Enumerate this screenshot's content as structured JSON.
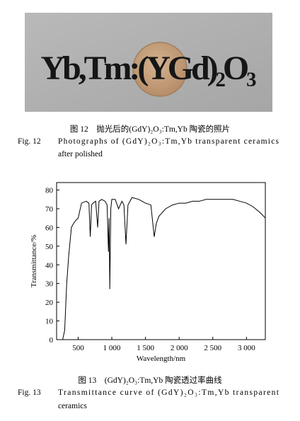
{
  "photo": {
    "label": "Yb,Tm:(YGd)₂O₃"
  },
  "figure12": {
    "caption_cn": "图 12　抛光后的(GdY)₂O₃:Tm,Yb 陶瓷的照片",
    "label_en": "Fig. 12",
    "caption_en_line1": "Photographs of (GdY)₂O₃:Tm,Yb transparent ceramics",
    "caption_en_line2": "after polished"
  },
  "chart_data": {
    "type": "line",
    "xlabel": "Wavelength/nm",
    "ylabel": "Transmittance/%",
    "color": "#000000",
    "x": [
      270,
      300,
      330,
      360,
      400,
      430,
      470,
      500,
      550,
      620,
      660,
      680,
      700,
      720,
      760,
      790,
      810,
      850,
      900,
      930,
      950,
      960,
      970,
      985,
      1000,
      1050,
      1100,
      1150,
      1180,
      1210,
      1240,
      1300,
      1400,
      1500,
      1580,
      1630,
      1660,
      1700,
      1750,
      1800,
      1900,
      2000,
      2100,
      2200,
      2300,
      2400,
      2500,
      2600,
      2700,
      2800,
      2900,
      3000,
      3100,
      3200,
      3280
    ],
    "values": [
      0,
      5,
      30,
      45,
      60,
      62,
      64,
      65,
      73,
      74,
      73,
      55,
      72,
      73,
      74,
      60,
      74,
      75,
      74,
      72,
      47,
      65,
      27,
      70,
      75,
      75,
      70,
      74,
      72,
      51,
      72,
      76,
      75,
      73,
      72,
      55,
      62,
      66,
      68,
      70,
      72,
      73,
      73,
      74,
      74,
      75,
      75,
      75,
      75,
      75,
      74,
      73,
      71,
      68,
      65
    ],
    "xlim": [
      180,
      3280
    ],
    "ylim": [
      0,
      84
    ],
    "xticks": [
      {
        "value": 500,
        "label": "500"
      },
      {
        "value": 1000,
        "label": "1 000"
      },
      {
        "value": 1500,
        "label": "1 500"
      },
      {
        "value": 2000,
        "label": "2 000"
      },
      {
        "value": 2500,
        "label": "2 500"
      },
      {
        "value": 3000,
        "label": "3 000"
      }
    ],
    "yticks": [
      0,
      10,
      20,
      30,
      40,
      50,
      60,
      70,
      80
    ]
  },
  "figure13": {
    "caption_cn": "图 13　(GdY)₂O₃:Tm,Yb 陶瓷透过率曲线",
    "label_en": "Fig. 13",
    "caption_en_line1": "Transmittance curve of (GdY)₂O₃:Tm,Yb transparent",
    "caption_en_line2": "ceramics"
  }
}
